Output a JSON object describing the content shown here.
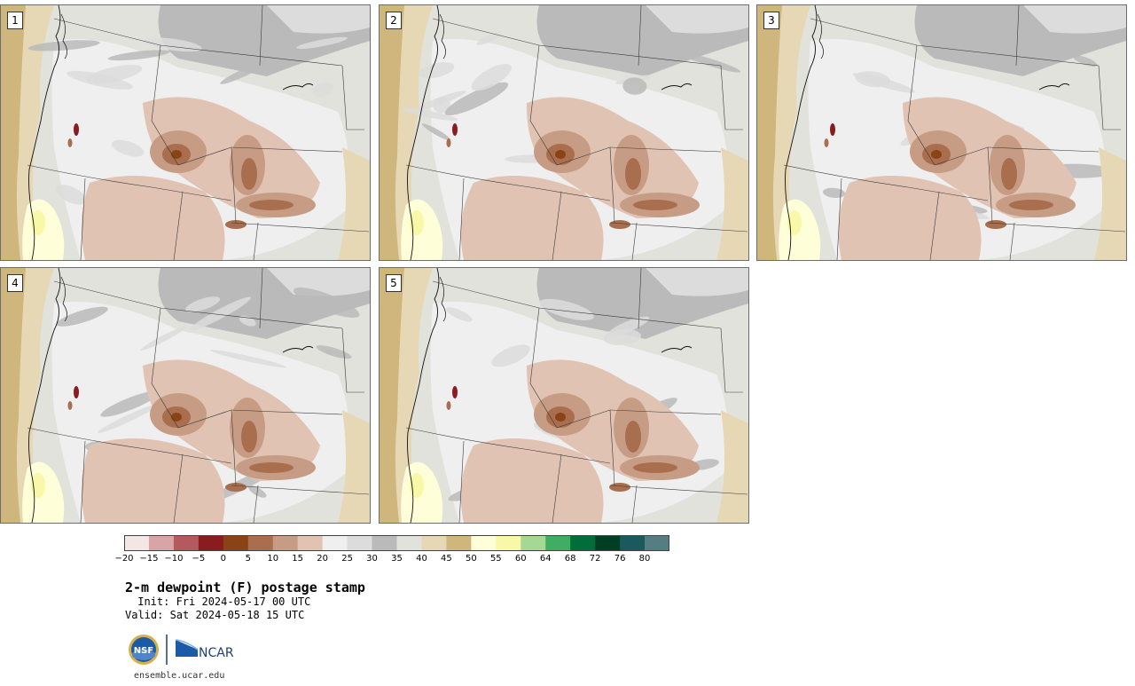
{
  "panels": [
    {
      "label": "1"
    },
    {
      "label": "2"
    },
    {
      "label": "3"
    },
    {
      "label": "4"
    },
    {
      "label": "5"
    }
  ],
  "colorbar": {
    "bins": [
      {
        "color": "#f4e6e4"
      },
      {
        "color": "#d8a4a6"
      },
      {
        "color": "#b45a5e"
      },
      {
        "color": "#8a1b1f"
      },
      {
        "color": "#8a4314"
      },
      {
        "color": "#a86e4e"
      },
      {
        "color": "#c79c84"
      },
      {
        "color": "#e1c3b3"
      },
      {
        "color": "#efefef"
      },
      {
        "color": "#dcdcdc"
      },
      {
        "color": "#bababa"
      },
      {
        "color": "#e2e2dc"
      },
      {
        "color": "#e7d8b5"
      },
      {
        "color": "#cfb67d"
      },
      {
        "color": "#fefed8"
      },
      {
        "color": "#f8f8a8"
      },
      {
        "color": "#a5d993"
      },
      {
        "color": "#3fad62"
      },
      {
        "color": "#006e38"
      },
      {
        "color": "#003d22"
      },
      {
        "color": "#1a5a5e"
      },
      {
        "color": "#557e82"
      }
    ],
    "tick_labels": [
      "−20",
      "−15",
      "−10",
      "−5",
      "0",
      "5",
      "10",
      "15",
      "20",
      "25",
      "30",
      "35",
      "40",
      "45",
      "50",
      "55",
      "60",
      "64",
      "68",
      "72",
      "76",
      "80"
    ]
  },
  "title": "2-m dewpoint (F) postage stamp",
  "init": " Init: Fri 2024-05-17 00 UTC",
  "valid": "Valid: Sat 2024-05-18 15 UTC",
  "logos": {
    "nsf": "NSF",
    "ncar": "NCAR"
  },
  "footer_url": "ensemble.ucar.edu"
}
